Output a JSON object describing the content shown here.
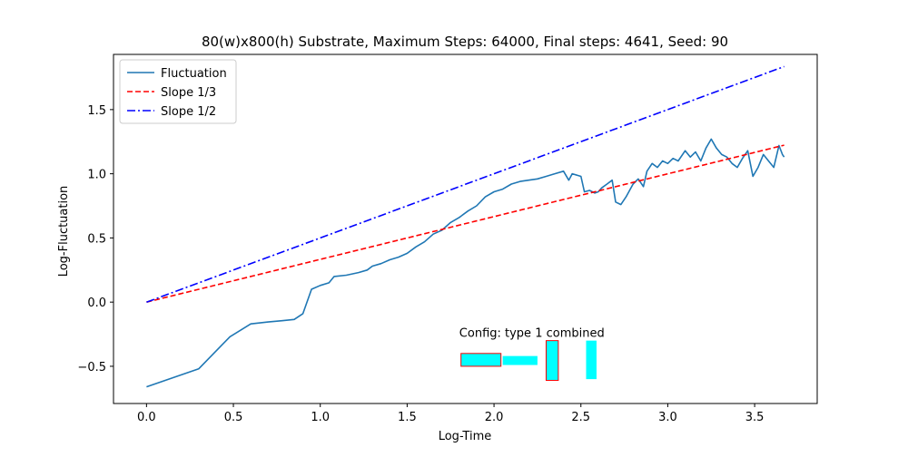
{
  "chart_data": {
    "type": "line",
    "title": "80(w)x800(h) Substrate, Maximum Steps: 64000, Final steps: 4641, Seed: 90",
    "xlabel": "Log-Time",
    "ylabel": "Log-Fluctuation",
    "xlim": [
      -0.19,
      3.86
    ],
    "ylim": [
      -0.79,
      1.93
    ],
    "xticks": [
      0.0,
      0.5,
      1.0,
      1.5,
      2.0,
      2.5,
      3.0,
      3.5
    ],
    "xtick_labels": [
      "0.0",
      "0.5",
      "1.0",
      "1.5",
      "2.0",
      "2.5",
      "3.0",
      "3.5"
    ],
    "yticks": [
      -0.5,
      0.0,
      0.5,
      1.0,
      1.5
    ],
    "ytick_labels": [
      "−0.5",
      "0.0",
      "0.5",
      "1.0",
      "1.5"
    ],
    "grid": false,
    "legend_position": "upper-left",
    "series": [
      {
        "name": "Fluctuation",
        "color": "#1f77b4",
        "style": "solid",
        "x": [
          0.0,
          0.3,
          0.48,
          0.6,
          0.7,
          0.78,
          0.85,
          0.9,
          0.95,
          1.0,
          1.05,
          1.08,
          1.15,
          1.22,
          1.27,
          1.3,
          1.35,
          1.4,
          1.45,
          1.5,
          1.55,
          1.6,
          1.65,
          1.7,
          1.75,
          1.8,
          1.85,
          1.9,
          1.95,
          2.0,
          2.05,
          2.1,
          2.15,
          2.2,
          2.25,
          2.3,
          2.35,
          2.4,
          2.43,
          2.45,
          2.5,
          2.52,
          2.55,
          2.58,
          2.6,
          2.62,
          2.65,
          2.68,
          2.7,
          2.73,
          2.76,
          2.8,
          2.83,
          2.86,
          2.88,
          2.91,
          2.94,
          2.97,
          3.0,
          3.03,
          3.06,
          3.1,
          3.13,
          3.16,
          3.19,
          3.22,
          3.25,
          3.28,
          3.31,
          3.34,
          3.37,
          3.4,
          3.43,
          3.46,
          3.49,
          3.52,
          3.55,
          3.58,
          3.61,
          3.64,
          3.66,
          3.67
        ],
        "y": [
          -0.66,
          -0.52,
          -0.27,
          -0.17,
          -0.155,
          -0.145,
          -0.135,
          -0.09,
          0.1,
          0.13,
          0.15,
          0.2,
          0.21,
          0.23,
          0.25,
          0.28,
          0.3,
          0.33,
          0.35,
          0.38,
          0.43,
          0.47,
          0.53,
          0.56,
          0.62,
          0.66,
          0.71,
          0.75,
          0.82,
          0.86,
          0.88,
          0.92,
          0.94,
          0.95,
          0.96,
          0.98,
          1.0,
          1.02,
          0.95,
          1.0,
          0.98,
          0.86,
          0.87,
          0.85,
          0.86,
          0.89,
          0.92,
          0.95,
          0.78,
          0.76,
          0.82,
          0.92,
          0.96,
          0.9,
          1.02,
          1.08,
          1.05,
          1.1,
          1.08,
          1.12,
          1.1,
          1.18,
          1.13,
          1.17,
          1.1,
          1.2,
          1.27,
          1.2,
          1.15,
          1.13,
          1.08,
          1.05,
          1.12,
          1.18,
          0.98,
          1.05,
          1.15,
          1.1,
          1.05,
          1.22,
          1.15,
          1.13
        ]
      },
      {
        "name": "Slope 1/3",
        "color": "#ff0000",
        "style": "dashed",
        "x": [
          0.0,
          3.67
        ],
        "y": [
          0.0,
          1.223
        ]
      },
      {
        "name": "Slope 1/2",
        "color": "#0000ff",
        "style": "dashdot",
        "x": [
          0.0,
          3.67
        ],
        "y": [
          0.0,
          1.835
        ]
      }
    ],
    "annotation": {
      "text": "Config:  type 1 combined",
      "x": 1.8,
      "y": -0.27
    },
    "config_shapes": [
      {
        "x0": 1.81,
        "x1": 2.04,
        "y0": -0.5,
        "y1": -0.4,
        "fill": "#00ffff",
        "edge": "#ff0000"
      },
      {
        "x0": 2.05,
        "x1": 2.25,
        "y0": -0.49,
        "y1": -0.42,
        "fill": "#00ffff",
        "edge": "none"
      },
      {
        "x0": 2.3,
        "x1": 2.37,
        "y0": -0.61,
        "y1": -0.3,
        "fill": "#00ffff",
        "edge": "#ff0000"
      },
      {
        "x0": 2.53,
        "x1": 2.59,
        "y0": -0.6,
        "y1": -0.3,
        "fill": "#00ffff",
        "edge": "none"
      }
    ]
  }
}
